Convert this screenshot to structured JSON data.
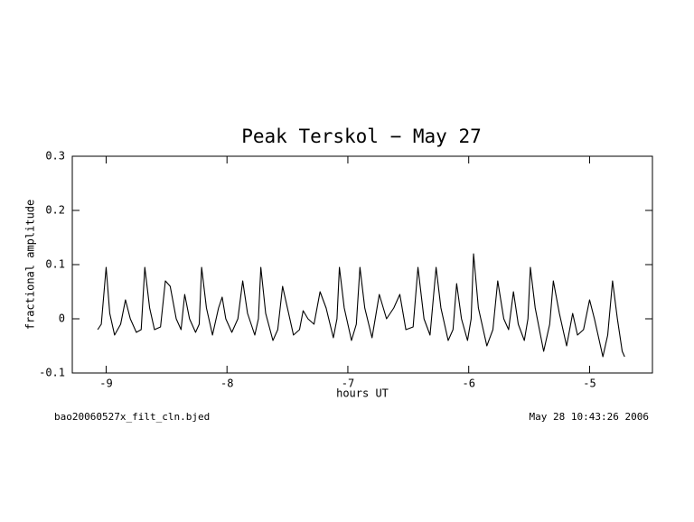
{
  "chart_data": {
    "type": "line",
    "title": "Peak Terskol − May 27",
    "xlabel": "hours UT",
    "ylabel": "fractional amplitude",
    "annotations": [
      "bao20060527x_filt_cln.bjed",
      "May 28 10:43:26 2006"
    ],
    "xlim": [
      -9.28,
      -4.48
    ],
    "ylim": [
      -0.1,
      0.3
    ],
    "xticks": [
      -9,
      -8,
      -7,
      -6,
      -5
    ],
    "yticks": [
      -0.1,
      0,
      0.1,
      0.2,
      0.3
    ],
    "series": [
      {
        "color": "#000000",
        "x": [
          -9.07,
          -9.04,
          -9.0,
          -8.97,
          -8.93,
          -8.88,
          -8.84,
          -8.8,
          -8.75,
          -8.71,
          -8.68,
          -8.64,
          -8.6,
          -8.55,
          -8.51,
          -8.47,
          -8.42,
          -8.38,
          -8.35,
          -8.31,
          -8.26,
          -8.23,
          -8.21,
          -8.17,
          -8.12,
          -8.07,
          -8.04,
          -8.01,
          -7.96,
          -7.91,
          -7.87,
          -7.83,
          -7.77,
          -7.74,
          -7.72,
          -7.68,
          -7.62,
          -7.58,
          -7.54,
          -7.5,
          -7.45,
          -7.4,
          -7.37,
          -7.33,
          -7.28,
          -7.23,
          -7.18,
          -7.12,
          -7.09,
          -7.07,
          -7.03,
          -6.97,
          -6.93,
          -6.9,
          -6.86,
          -6.8,
          -6.74,
          -6.68,
          -6.62,
          -6.57,
          -6.52,
          -6.46,
          -6.42,
          -6.37,
          -6.32,
          -6.27,
          -6.23,
          -6.17,
          -6.13,
          -6.1,
          -6.06,
          -6.01,
          -5.98,
          -5.96,
          -5.92,
          -5.85,
          -5.8,
          -5.76,
          -5.71,
          -5.67,
          -5.63,
          -5.59,
          -5.54,
          -5.51,
          -5.49,
          -5.45,
          -5.38,
          -5.33,
          -5.3,
          -5.25,
          -5.19,
          -5.14,
          -5.1,
          -5.05,
          -5.0,
          -4.96,
          -4.89,
          -4.85,
          -4.81,
          -4.77,
          -4.73,
          -4.71
        ],
        "values": [
          -0.02,
          -0.01,
          0.095,
          0.01,
          -0.03,
          -0.01,
          0.035,
          0.0,
          -0.025,
          -0.02,
          0.095,
          0.02,
          -0.02,
          -0.015,
          0.07,
          0.06,
          0.0,
          -0.02,
          0.045,
          0.0,
          -0.025,
          -0.01,
          0.095,
          0.02,
          -0.03,
          0.02,
          0.04,
          0.0,
          -0.025,
          0.0,
          0.07,
          0.01,
          -0.03,
          0.0,
          0.095,
          0.01,
          -0.04,
          -0.02,
          0.06,
          0.02,
          -0.03,
          -0.02,
          0.015,
          0.0,
          -0.01,
          0.05,
          0.02,
          -0.035,
          0.0,
          0.095,
          0.02,
          -0.04,
          -0.01,
          0.095,
          0.02,
          -0.035,
          0.045,
          0.0,
          0.02,
          0.045,
          -0.02,
          -0.015,
          0.095,
          0.0,
          -0.03,
          0.095,
          0.02,
          -0.04,
          -0.02,
          0.065,
          0.0,
          -0.04,
          0.0,
          0.12,
          0.02,
          -0.05,
          -0.02,
          0.07,
          0.0,
          -0.02,
          0.05,
          -0.01,
          -0.04,
          0.0,
          0.095,
          0.02,
          -0.06,
          -0.01,
          0.07,
          0.01,
          -0.05,
          0.01,
          -0.03,
          -0.02,
          0.035,
          0.0,
          -0.07,
          -0.03,
          0.07,
          0.0,
          -0.06,
          -0.07
        ]
      }
    ]
  }
}
